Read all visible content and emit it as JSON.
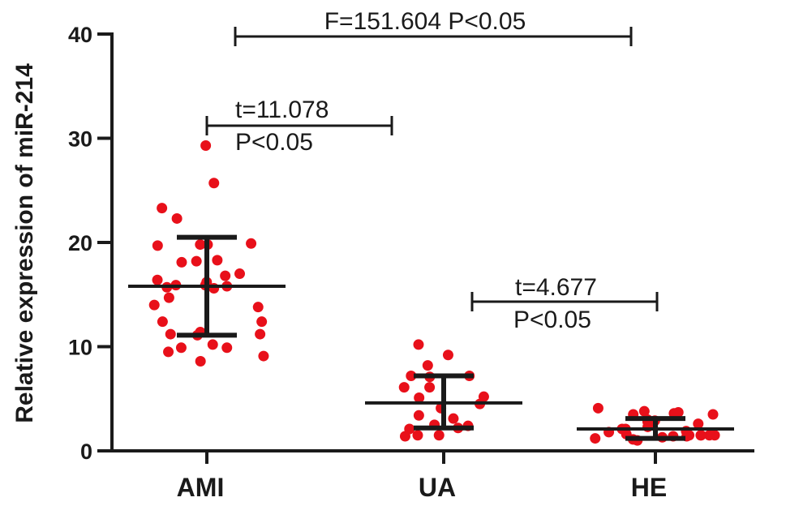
{
  "chart_data": {
    "type": "scatter",
    "ylabel": "Relative expression of miR-214",
    "xlabel": "",
    "ylim": [
      0,
      40
    ],
    "yticks": [
      "0",
      "10",
      "20",
      "30",
      "40"
    ],
    "categories": [
      "AMI",
      "UA",
      "HE"
    ],
    "groups": [
      {
        "name": "AMI",
        "mean": 15.8,
        "sd_upper": 20.5,
        "sd_lower": 11.1,
        "points": [
          29.3,
          25.7,
          23.3,
          22.3,
          19.8,
          19.8,
          19.7,
          19.9,
          18.3,
          18.2,
          18.1,
          17.0,
          16.8,
          16.4,
          16.2,
          15.9,
          15.8,
          15.7,
          15.6,
          15.9,
          14.7,
          14.0,
          13.8,
          12.4,
          12.4,
          11.4,
          11.2,
          11.2,
          11.1,
          10.2,
          9.9,
          9.9,
          9.5,
          9.1,
          8.6
        ]
      },
      {
        "name": "UA",
        "mean": 4.6,
        "sd_upper": 7.2,
        "sd_lower": 2.2,
        "points": [
          10.2,
          9.2,
          8.2,
          7.2,
          7.2,
          7.1,
          6.1,
          6.1,
          5.2,
          5.1,
          4.5,
          4.1,
          3.4,
          3.1,
          2.5,
          2.4,
          2.2,
          2.1,
          1.5,
          1.5,
          1.4
        ]
      },
      {
        "name": "HE",
        "mean": 2.1,
        "sd_upper": 3.1,
        "sd_lower": 1.2,
        "points": [
          4.1,
          3.8,
          3.7,
          3.6,
          3.5,
          3.5,
          3.0,
          2.9,
          2.8,
          2.6,
          2.4,
          2.3,
          2.1,
          2.1,
          1.9,
          1.8,
          1.6,
          1.5,
          1.5,
          1.5,
          1.5,
          1.5,
          1.4,
          1.4,
          1.3,
          1.2,
          1.1,
          1.0
        ]
      }
    ],
    "annotations": [
      {
        "from": "AMI",
        "to": "HE",
        "text": "F=151.604   P<0.05"
      },
      {
        "from": "AMI",
        "to": "UA",
        "line1": "t=11.078",
        "line2": "P<0.05"
      },
      {
        "from": "UA",
        "to": "HE",
        "line1": "t=4.677",
        "line2": "P<0.05"
      }
    ],
    "colors": {
      "points": "#e8101a",
      "lines": "#1a1a1a"
    }
  }
}
